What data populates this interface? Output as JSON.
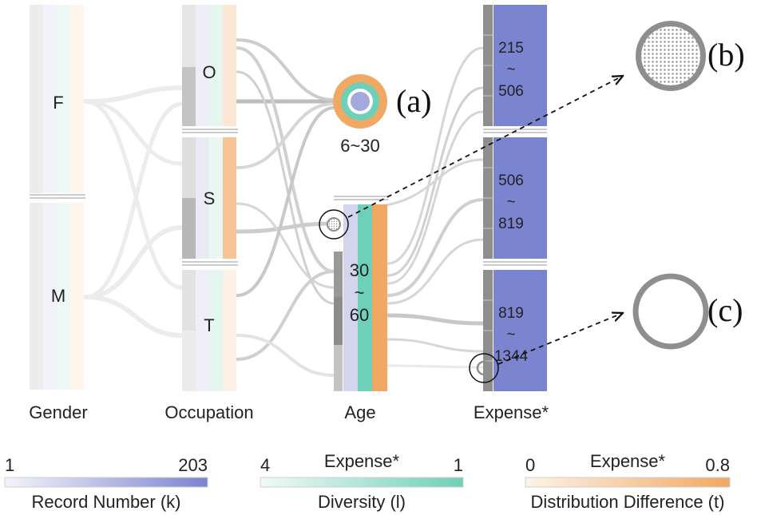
{
  "axes": {
    "gender": "Gender",
    "occupation": "Occupation",
    "age": "Age",
    "expense": "Expense*"
  },
  "gender_nodes": [
    "F",
    "M"
  ],
  "occupation_nodes": [
    "O",
    "S",
    "T"
  ],
  "age_nodes": [
    {
      "lines": [
        "6~30"
      ]
    },
    {
      "lines": [
        "30",
        "~",
        "60"
      ]
    }
  ],
  "expense_nodes": [
    {
      "lines": [
        "215",
        "~",
        "506"
      ]
    },
    {
      "lines": [
        "506",
        "~",
        "819"
      ]
    },
    {
      "lines": [
        "819",
        "~",
        "1344"
      ]
    }
  ],
  "annotations": {
    "a": "(a)",
    "b": "(b)",
    "c": "(c)"
  },
  "legends": [
    {
      "min": "1",
      "max": "203",
      "title": "",
      "label": "Record Number (k)",
      "color_low": "#f4f4fb",
      "color_high": "#7b84cf"
    },
    {
      "min": "4",
      "max": "1",
      "title": "Expense*",
      "label": "Diversity (l)",
      "color_low": "#f1faf7",
      "color_high": "#6ed0b8"
    },
    {
      "min": "0",
      "max": "0.8",
      "title": "Expense*",
      "label": "Distribution Difference (t)",
      "color_low": "#fdf3e8",
      "color_high": "#f1a862"
    }
  ],
  "colors": {
    "record": "#7b84cf",
    "diversity": "#6ed0b8",
    "difference": "#f1a862",
    "link": "#cfcfcf",
    "link_faint": "#e8e8e8",
    "gray_dark": "#9a9a9a"
  }
}
